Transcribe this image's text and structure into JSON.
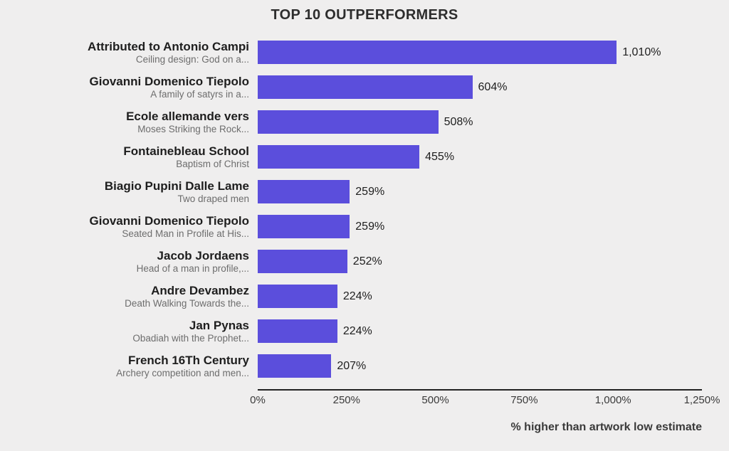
{
  "chart_data": {
    "type": "bar",
    "orientation": "horizontal",
    "title": "TOP 10 OUTPERFORMERS",
    "xlabel": "% higher than artwork low estimate",
    "xlim": [
      0,
      1250
    ],
    "x_ticks": [
      "0%",
      "250%",
      "500%",
      "750%",
      "1,000%",
      "1,250%"
    ],
    "x_tick_values": [
      0,
      250,
      500,
      750,
      1000,
      1250
    ],
    "grid": false,
    "legend": "none",
    "bar_color": "#5b4edc",
    "background_color": "#efeeee",
    "bars": [
      {
        "artist": "Attributed to Antonio Campi",
        "artwork": "Ceiling design: God on a...",
        "value": 1010,
        "value_label": "1,010%"
      },
      {
        "artist": "Giovanni Domenico Tiepolo",
        "artwork": "A family of satyrs in a...",
        "value": 604,
        "value_label": "604%"
      },
      {
        "artist": "Ecole allemande vers",
        "artwork": "Moses Striking the Rock...",
        "value": 508,
        "value_label": "508%"
      },
      {
        "artist": "Fontainebleau School",
        "artwork": "Baptism of Christ",
        "value": 455,
        "value_label": "455%"
      },
      {
        "artist": "Biagio Pupini Dalle Lame",
        "artwork": "Two draped men",
        "value": 259,
        "value_label": "259%"
      },
      {
        "artist": "Giovanni Domenico Tiepolo",
        "artwork": "Seated Man in Profile at His...",
        "value": 259,
        "value_label": "259%"
      },
      {
        "artist": "Jacob Jordaens",
        "artwork": "Head of a man in profile,...",
        "value": 252,
        "value_label": "252%"
      },
      {
        "artist": "Andre Devambez",
        "artwork": "Death Walking Towards the...",
        "value": 224,
        "value_label": "224%"
      },
      {
        "artist": "Jan Pynas",
        "artwork": "Obadiah with the Prophet...",
        "value": 224,
        "value_label": "224%"
      },
      {
        "artist": "French 16Th Century",
        "artwork": "Archery competition and men...",
        "value": 207,
        "value_label": "207%"
      }
    ]
  }
}
